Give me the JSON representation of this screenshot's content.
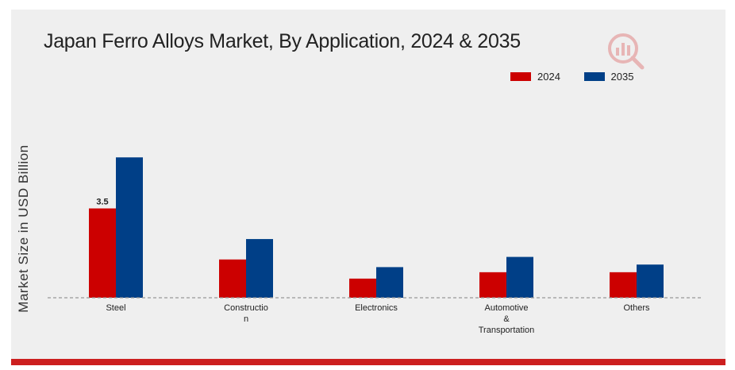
{
  "chart_data": {
    "type": "bar",
    "title": "Japan Ferro Alloys Market, By Application, 2024 & 2035",
    "ylabel": "Market Size in USD Billion",
    "xlabel": "",
    "categories": [
      [
        "Steel"
      ],
      [
        "Constructio",
        "n"
      ],
      [
        "Electronics"
      ],
      [
        "Automotive",
        "&",
        "Transportation"
      ],
      [
        "Others"
      ]
    ],
    "series": [
      {
        "name": "2024",
        "color": "#cc0000",
        "values": [
          3.5,
          1.5,
          0.75,
          1.0,
          1.0
        ]
      },
      {
        "name": "2035",
        "color": "#003f87",
        "values": [
          5.5,
          2.3,
          1.2,
          1.6,
          1.3
        ]
      }
    ],
    "data_labels": [
      {
        "series": 0,
        "index": 0,
        "text": "3.5"
      }
    ],
    "ylim": [
      0,
      7
    ],
    "grid": false,
    "legend_position": "top-right",
    "baseline": "dashed"
  },
  "logo": {
    "icon": "market-research-logo-icon"
  }
}
